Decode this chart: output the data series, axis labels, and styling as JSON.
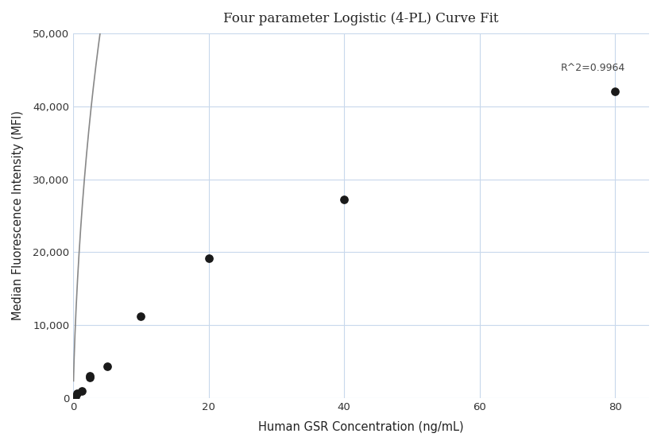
{
  "title": "Four parameter Logistic (4-PL) Curve Fit",
  "xlabel": "Human GSR Concentration (ng/mL)",
  "ylabel": "Median Fluorescence Intensity (MFI)",
  "scatter_x": [
    0.312,
    0.625,
    1.25,
    2.5,
    2.5,
    5.0,
    10.0,
    20.0,
    40.0,
    80.0
  ],
  "scatter_y": [
    200,
    700,
    1000,
    2800,
    3000,
    4400,
    11200,
    19200,
    27200,
    42000
  ],
  "xlim": [
    0,
    85
  ],
  "ylim": [
    0,
    50000
  ],
  "yticks": [
    0,
    10000,
    20000,
    30000,
    40000,
    50000
  ],
  "xticks": [
    0,
    20,
    40,
    60,
    80
  ],
  "r_squared": "R^2=0.9964",
  "r_squared_x": 72,
  "r_squared_y": 44500,
  "curve_color": "#888888",
  "scatter_color": "#1a1a1a",
  "background_color": "#ffffff",
  "grid_color": "#c8d8ec",
  "4pl_A": -500,
  "4pl_B": 0.72,
  "4pl_C": 18.0,
  "4pl_D": 200000
}
